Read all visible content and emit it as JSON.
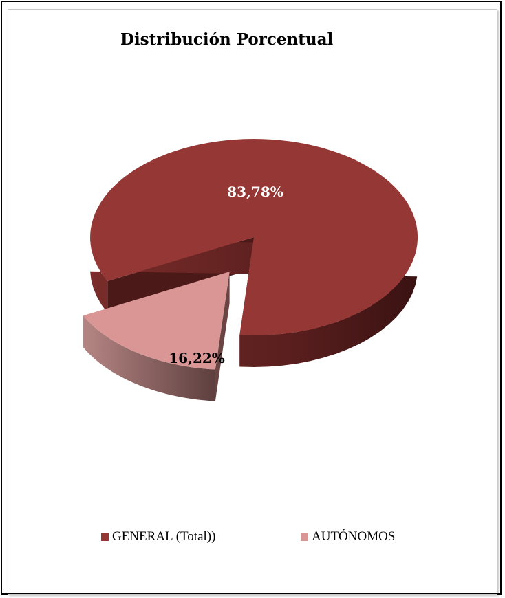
{
  "chart_data": {
    "type": "pie",
    "title": "Distribución Porcentual",
    "slices": [
      {
        "label": "GENERAL (Total))",
        "value": 83.78,
        "display": "83,78%",
        "color": "#953735",
        "side": "#5e2221"
      },
      {
        "label": "AUTÓNOMOS",
        "value": 16.22,
        "display": "16,22%",
        "color": "#d99694",
        "side": "#7a5250"
      }
    ],
    "legend_position": "bottom",
    "exploded_slice": "AUTÓNOMOS",
    "three_d": true
  }
}
